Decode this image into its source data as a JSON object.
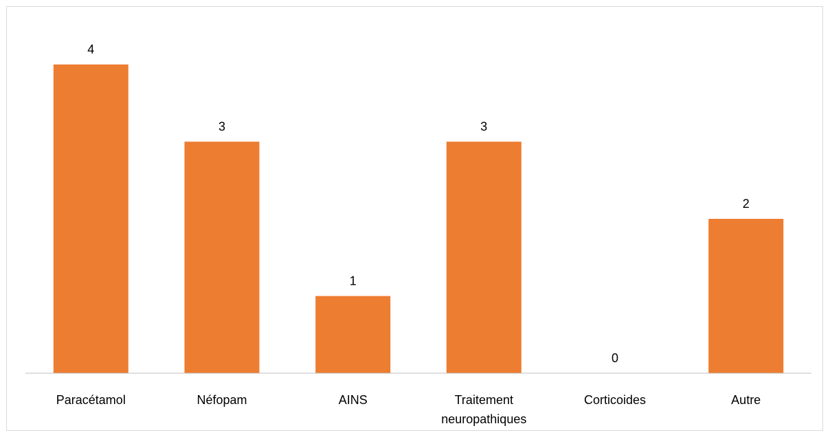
{
  "chart_data": {
    "type": "bar",
    "categories": [
      [
        "Paracétamol"
      ],
      [
        "Néfopam"
      ],
      [
        "AINS"
      ],
      [
        "Traitement",
        "neuropathiques"
      ],
      [
        "Corticoides"
      ],
      [
        "Autre"
      ]
    ],
    "values": [
      4,
      3,
      1,
      3,
      0,
      2
    ],
    "data_labels": [
      "4",
      "3",
      "1",
      "3",
      "0",
      "2"
    ],
    "ylim": [
      0,
      4
    ],
    "bar_color": "#ED7D31",
    "axis_color": "#bfbfbf",
    "grid": false,
    "legend": "none",
    "title": "",
    "xlabel": "",
    "ylabel": ""
  }
}
